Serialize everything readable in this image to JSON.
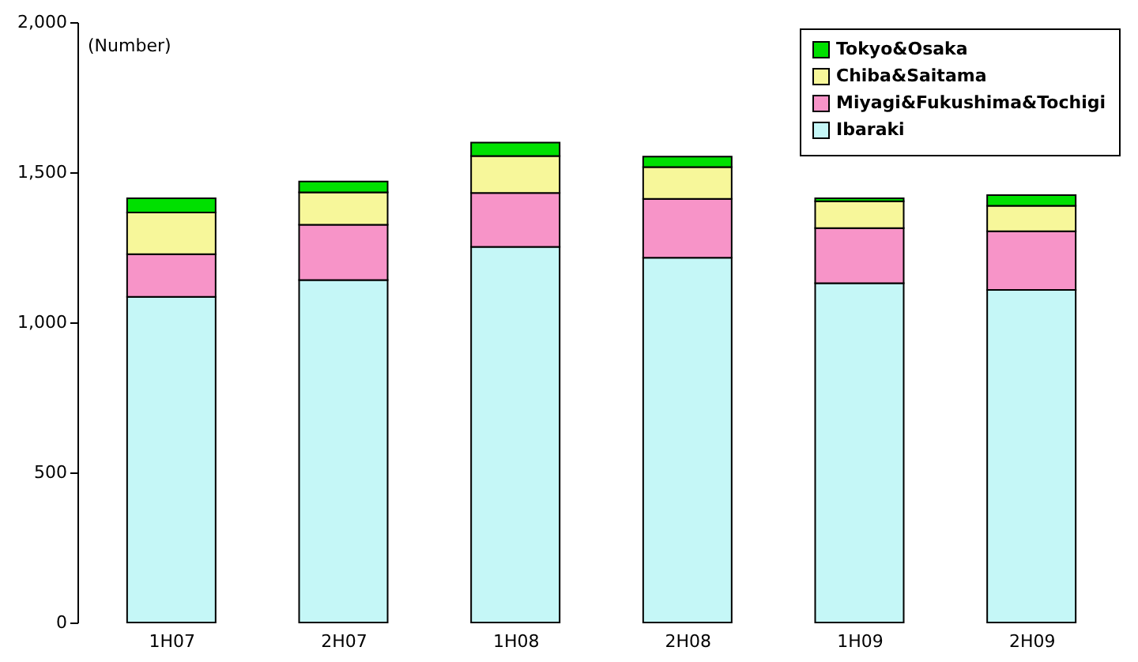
{
  "chart_data": {
    "type": "bar",
    "stacked": true,
    "ylabel": "(Number)",
    "categories": [
      "1H07",
      "2H07",
      "1H08",
      "2H08",
      "1H09",
      "2H09"
    ],
    "series": [
      {
        "name": "Ibaraki",
        "color": "#c5f7f7",
        "values": [
          1085,
          1141,
          1251,
          1215,
          1130,
          1108
        ]
      },
      {
        "name": "Miyagi&Fukushima&Tochigi",
        "color": "#f794c8",
        "values": [
          142,
          184,
          180,
          196,
          184,
          195
        ]
      },
      {
        "name": "Chiba&Saitama",
        "color": "#f7f79a",
        "values": [
          139,
          108,
          123,
          106,
          89,
          85
        ]
      },
      {
        "name": "Tokyo&Osaka",
        "color": "#00e000",
        "values": [
          47,
          36,
          45,
          35,
          10,
          36
        ]
      }
    ],
    "ylim": [
      0,
      2000
    ],
    "yticks": [
      0,
      500,
      {
        "value": 1000,
        "label": "1,000"
      },
      {
        "value": 1500,
        "label": "1,500"
      },
      {
        "value": 2000,
        "label": "2,000"
      }
    ],
    "grid": false,
    "legend": "top right"
  }
}
